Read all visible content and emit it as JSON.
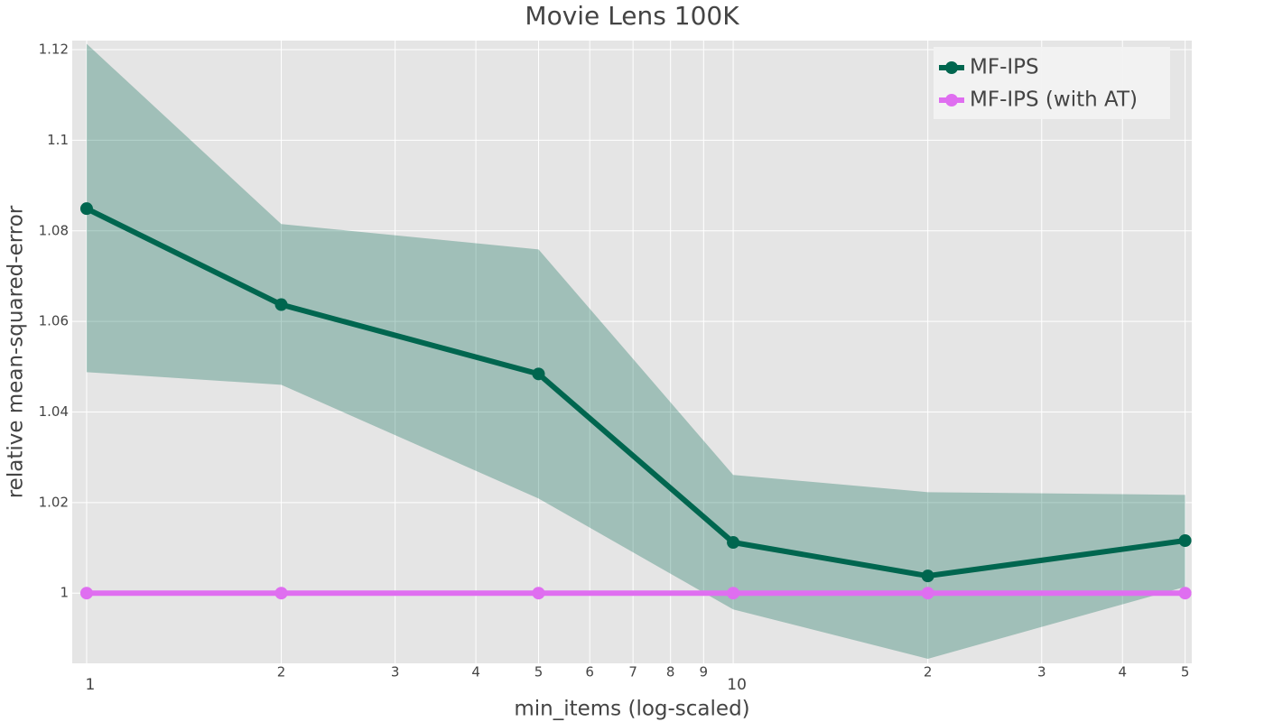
{
  "chart_data": {
    "type": "line",
    "title": "Movie Lens 100K",
    "x_label": "min_items (log-scaled)",
    "y_label": "relative mean-squared-error",
    "x": [
      1,
      2,
      5,
      10,
      20,
      50
    ],
    "x_log": true,
    "xlim": [
      0.95,
      51.2
    ],
    "ylim": [
      0.9845,
      1.122
    ],
    "xticks": [
      1,
      2,
      3,
      4,
      5,
      6,
      7,
      8,
      9,
      10,
      {
        "value": 20,
        "label": "2"
      },
      {
        "value": 30,
        "label": "3"
      },
      {
        "value": 40,
        "label": "4"
      },
      {
        "value": 50,
        "label": "5"
      }
    ],
    "yticks": [
      1,
      1.02,
      1.04,
      1.06,
      1.08,
      1.1,
      1.12
    ],
    "grid": true,
    "legend": "top-right",
    "series": [
      {
        "name": "MF-IPS",
        "color": "#00664f",
        "band_color": "rgba(0,102,79,0.3)",
        "values": [
          1.0849,
          1.0637,
          1.0484,
          1.0112,
          1.0038,
          1.0116
        ],
        "lower": [
          1.0488,
          1.046,
          1.0209,
          0.9964,
          0.9855,
          1.0014
        ],
        "upper": [
          1.1213,
          1.0815,
          1.0759,
          1.0261,
          1.0223,
          1.0217
        ]
      },
      {
        "name": "MF-IPS (with AT)",
        "color": "#df6ef0",
        "values": [
          1,
          1,
          1,
          1,
          1,
          1
        ]
      }
    ]
  }
}
